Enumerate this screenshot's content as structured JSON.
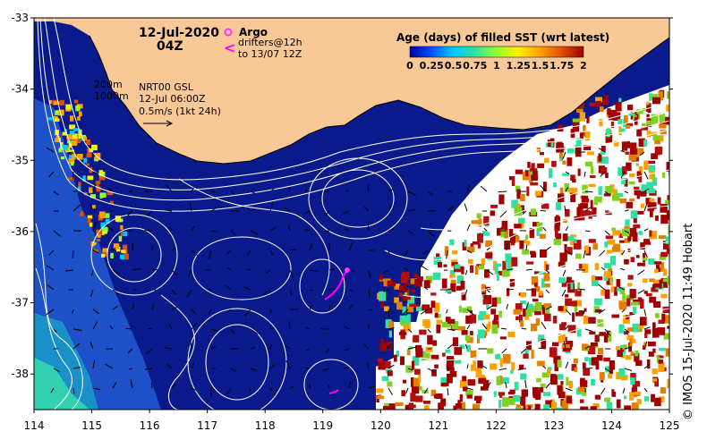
{
  "title": {
    "date": "12-Jul-2020",
    "hour": "04Z"
  },
  "argo_legend": {
    "label": "Argo",
    "drifters_line1": "drifters@12h",
    "drifters_line2": "to 13/07 12Z",
    "argo_color": "#ff33ff",
    "drifter_color": "#ff00ff"
  },
  "bathymetry_legend": {
    "contour_1": "200m",
    "contour_2": "1000m"
  },
  "gsl_legend": {
    "product": "NRT00 GSL",
    "time": "12-Jul 06:00Z",
    "scale": "0.5m/s (1kt 24h)"
  },
  "colorbar": {
    "title": "Age (days) of filled SST (wrt latest)",
    "ticks": [
      "0",
      "0.25",
      "0.5",
      "0.75",
      "1",
      "1.25",
      "1.5",
      "1.75",
      "2"
    ],
    "colors": [
      "#0000a0",
      "#0050ff",
      "#00c8ff",
      "#30e0a0",
      "#90ff30",
      "#ffee00",
      "#ffa000",
      "#e05000",
      "#a00000"
    ]
  },
  "axes": {
    "lon_ticks": [
      "114",
      "115",
      "116",
      "117",
      "118",
      "119",
      "120",
      "121",
      "122",
      "123",
      "124",
      "125"
    ],
    "lat_ticks": [
      "-33",
      "-34",
      "-35",
      "-36",
      "-37",
      "-38"
    ],
    "lon_range": [
      114,
      125
    ],
    "lat_range": [
      -38.5,
      -33
    ]
  },
  "credit": "© IMOS 15-Jul-2020 11:49 Hobart",
  "colors": {
    "ocean": "#0a1a8c",
    "land": "#f8c896",
    "cloud": "#ffffff",
    "contour": "#ffffff"
  }
}
